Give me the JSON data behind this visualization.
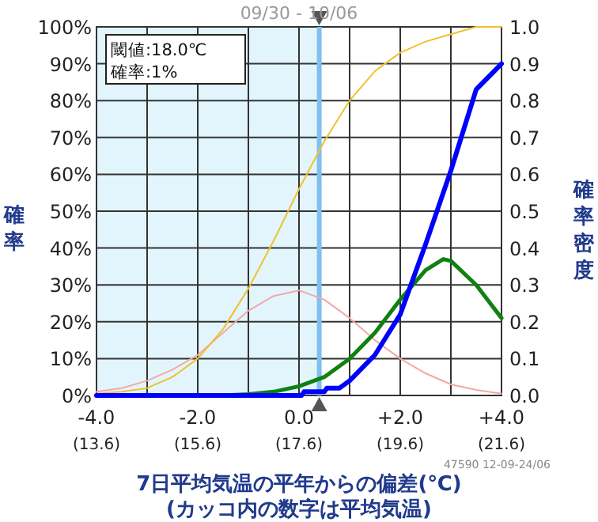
{
  "chart_data": {
    "type": "line",
    "title": "09/30 - 10/06",
    "xlabel": "7日平均気温の平年からの偏差(℃)",
    "ylabel": "確率",
    "y2label": "確率密度",
    "annotations": [
      "閾値:18.0℃",
      "確率:1%",
      "47590 12-09-24/06",
      "(カッコ内の数字は平均気温)"
    ],
    "xlim": [
      -4,
      4
    ],
    "xticks": [
      {
        "value": -4,
        "label": "-4.0"
      },
      {
        "value": -3,
        "label": null
      },
      {
        "value": -2,
        "label": "-2.0"
      },
      {
        "value": -1,
        "label": null
      },
      {
        "value": 0,
        "label": "0.0"
      },
      {
        "value": 1,
        "label": null
      },
      {
        "value": 2,
        "label": "+2.0"
      },
      {
        "value": 3,
        "label": null
      },
      {
        "value": 4,
        "label": "+4.0"
      }
    ],
    "x2lim": [
      13.6,
      21.6
    ],
    "x2ticks": [
      {
        "value": 13.6,
        "label": "(13.6)"
      },
      {
        "value": 15.6,
        "label": "(15.6)"
      },
      {
        "value": 17.6,
        "label": "(17.6)"
      },
      {
        "value": 19.6,
        "label": "(19.6)"
      },
      {
        "value": 21.6,
        "label": "(21.6)"
      }
    ],
    "ylim": [
      0,
      100
    ],
    "yticks": [
      {
        "value": 0,
        "label": "0%"
      },
      {
        "value": 10,
        "label": "10%"
      },
      {
        "value": 20,
        "label": "20%"
      },
      {
        "value": 30,
        "label": "30%"
      },
      {
        "value": 40,
        "label": "40%"
      },
      {
        "value": 50,
        "label": "50%"
      },
      {
        "value": 60,
        "label": "60%"
      },
      {
        "value": 70,
        "label": "70%"
      },
      {
        "value": 80,
        "label": "80%"
      },
      {
        "value": 90,
        "label": "90%"
      },
      {
        "value": 100,
        "label": "100%"
      }
    ],
    "y2lim": [
      0,
      1
    ],
    "y2ticks": [
      {
        "value": 0,
        "label": "0.0"
      },
      {
        "value": 0.1,
        "label": "0.1"
      },
      {
        "value": 0.2,
        "label": "0.2"
      },
      {
        "value": 0.3,
        "label": "0.3"
      },
      {
        "value": 0.4,
        "label": "0.4"
      },
      {
        "value": 0.5,
        "label": "0.5"
      },
      {
        "value": 0.6,
        "label": "0.6"
      },
      {
        "value": 0.7,
        "label": "0.7"
      },
      {
        "value": 0.8,
        "label": "0.8"
      },
      {
        "value": 0.9,
        "label": "0.9"
      },
      {
        "value": 1,
        "label": "1.0"
      }
    ],
    "grid": true,
    "bands": [
      {
        "axis": "x",
        "from": -4,
        "to": 0.4,
        "color": "#e2f5fc"
      }
    ],
    "ref_lines": [
      {
        "axis": "x",
        "value": 0.4,
        "color": "#80bff0"
      }
    ],
    "series": [
      {
        "color": "#f4a8a8",
        "axis": "y2",
        "x": [
          -4,
          -3.5,
          -3,
          -2.5,
          -2,
          -1.5,
          -1,
          -0.5,
          0,
          0.5,
          1,
          1.5,
          2,
          2.5,
          3,
          3.5,
          4
        ],
        "values": [
          0.01,
          0.02,
          0.04,
          0.07,
          0.11,
          0.17,
          0.23,
          0.27,
          0.285,
          0.26,
          0.21,
          0.15,
          0.1,
          0.06,
          0.03,
          0.015,
          0.005
        ]
      },
      {
        "color": "#f0c030",
        "x": [
          -4,
          -3.5,
          -3,
          -2.5,
          -2,
          -1.5,
          -1,
          -0.5,
          0,
          0.5,
          1,
          1.5,
          2,
          2.5,
          3,
          3.5,
          4
        ],
        "values": [
          0.5,
          1,
          2,
          5,
          10,
          18,
          29,
          42,
          56,
          69,
          80,
          88,
          93,
          96,
          98,
          100,
          100
        ]
      },
      {
        "color": "#108010",
        "axis": "y2",
        "x": [
          -4,
          -1.5,
          -1,
          -0.5,
          0,
          0.5,
          1,
          1.5,
          2,
          2.5,
          2.85,
          3,
          3.5,
          4
        ],
        "values": [
          0,
          0,
          0.003,
          0.01,
          0.025,
          0.05,
          0.1,
          0.17,
          0.26,
          0.34,
          0.37,
          0.365,
          0.3,
          0.21
        ]
      },
      {
        "color": "#0000ff",
        "x": [
          -4,
          0.05,
          0.1,
          0.5,
          0.55,
          0.8,
          1,
          1.5,
          2,
          2.5,
          3,
          3.5,
          4
        ],
        "values": [
          0,
          0,
          1,
          1,
          2,
          2,
          4,
          11,
          22,
          41,
          61,
          83,
          90
        ]
      }
    ]
  }
}
